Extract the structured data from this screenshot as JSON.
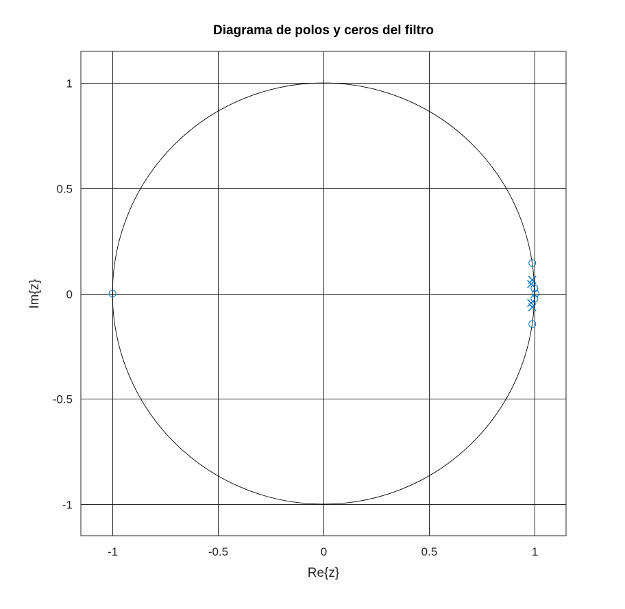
{
  "chart_data": {
    "type": "scatter",
    "title": "Diagrama de polos y ceros del filtro",
    "xlabel": "Re{z}",
    "ylabel": "Im{z}",
    "xlim": [
      -1.15,
      1.15
    ],
    "ylim": [
      -1.15,
      1.15
    ],
    "grid": true,
    "x_ticks": [
      -1,
      -0.5,
      0,
      0.5,
      1
    ],
    "x_tick_labels": [
      "-1",
      "-0.5",
      "0",
      "0.5",
      "1"
    ],
    "y_ticks": [
      -1,
      -0.5,
      0,
      0.5,
      1
    ],
    "y_tick_labels": [
      "-1",
      "-0.5",
      "0",
      "0.5",
      "1"
    ],
    "unit_circle": {
      "radius": 1,
      "color": "#000000"
    },
    "series": [
      {
        "marker": "o",
        "color": "#0072bd",
        "points": [
          {
            "x": -1.0,
            "y": 0.0
          },
          {
            "x": 0.99,
            "y": 0.145
          },
          {
            "x": 0.99,
            "y": -0.145
          },
          {
            "x": 1.0,
            "y": 0.025
          },
          {
            "x": 1.0,
            "y": -0.025
          },
          {
            "x": 1.005,
            "y": 0.0
          }
        ]
      },
      {
        "marker": "x",
        "color": "#0072bd",
        "points": [
          {
            "x": 0.99,
            "y": 0.065
          },
          {
            "x": 0.99,
            "y": -0.065
          },
          {
            "x": 0.985,
            "y": 0.045
          },
          {
            "x": 0.985,
            "y": -0.045
          }
        ]
      }
    ]
  }
}
